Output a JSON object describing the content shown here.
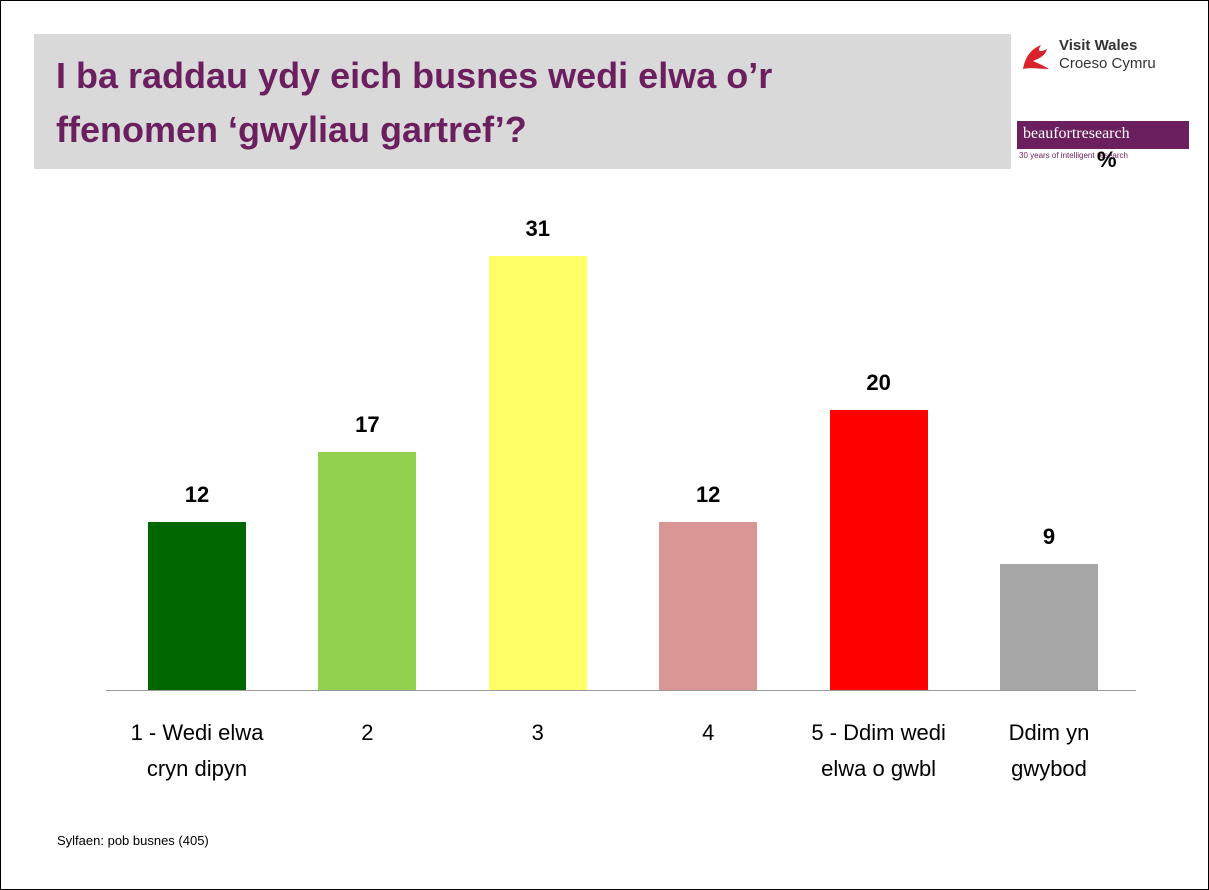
{
  "chart_data": {
    "type": "bar",
    "title": "I ba raddau ydy eich busnes wedi elwa o’r\nffenomen ‘gwyliau gartref’?",
    "unit_label": "%",
    "categories": [
      "1 - Wedi elwa\ncryn dipyn",
      "2",
      "3",
      "4",
      "5 - Ddim wedi\nelwa o gwbl",
      "Ddim yn\ngwybod"
    ],
    "values": [
      12,
      17,
      31,
      12,
      20,
      9
    ],
    "colors": [
      "#006600",
      "#92d050",
      "#ffff66",
      "#d99694",
      "#ff0000",
      "#a6a6a6"
    ],
    "footnote": "Sylfaen: pob busnes (405)"
  },
  "logos": {
    "visit_wales": "Visit Wales",
    "croeso_cymru": "Croeso Cymru",
    "beaufort": "beaufortresearch",
    "beaufort_tagline": "30 years of intelligent research"
  }
}
